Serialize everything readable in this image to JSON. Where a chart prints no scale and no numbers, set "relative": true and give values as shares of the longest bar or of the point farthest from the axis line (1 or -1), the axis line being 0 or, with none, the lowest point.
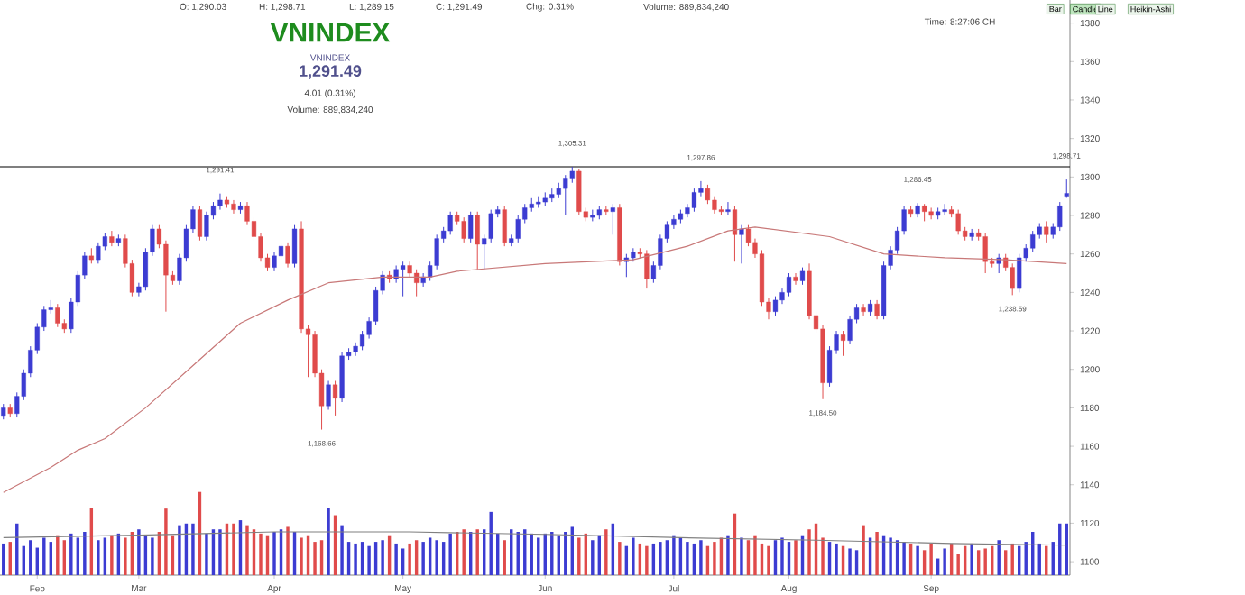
{
  "chart_data": [
    {
      "type": "candlestick",
      "title": "VNINDEX",
      "subtitle": "VNINDEX",
      "categories": [
        null,
        null,
        null,
        null,
        null,
        null,
        null,
        null,
        null,
        null,
        null,
        null,
        null,
        null,
        null,
        null,
        null,
        null,
        null,
        null,
        null,
        null,
        null,
        null,
        null,
        null,
        null,
        null,
        null,
        null,
        null,
        null,
        null,
        null,
        null,
        null,
        null,
        null,
        null,
        null,
        null,
        null,
        null,
        null,
        null,
        null,
        null,
        null,
        null,
        null,
        null,
        null,
        null,
        null,
        null,
        null,
        null,
        null,
        null,
        null,
        null,
        null,
        null,
        null,
        null,
        null,
        null,
        null,
        null,
        null,
        null,
        null,
        null,
        null,
        null,
        null,
        null,
        null,
        null,
        null,
        null,
        null,
        null,
        null,
        null,
        null,
        null,
        null,
        null,
        null,
        null,
        null,
        null,
        null,
        null,
        null,
        null,
        null,
        null,
        null,
        null,
        null,
        null,
        null,
        null,
        null,
        null,
        null,
        null,
        null,
        null,
        null,
        null,
        null,
        null,
        null,
        null,
        null,
        null,
        null,
        null,
        null,
        null,
        null,
        null,
        null,
        null,
        null,
        null,
        null,
        null,
        null,
        null,
        null,
        null,
        null,
        null,
        null,
        null,
        null,
        null,
        null,
        null,
        null,
        null,
        null,
        null,
        null,
        null,
        null,
        null,
        null,
        null,
        null,
        null,
        null,
        null,
        null
      ],
      "ohlc": [
        [
          1176,
          1182,
          1174,
          1180
        ],
        [
          1180,
          1182,
          1175,
          1177
        ],
        [
          1177,
          1188,
          1175,
          1186
        ],
        [
          1186,
          1200,
          1184,
          1198
        ],
        [
          1198,
          1212,
          1196,
          1210
        ],
        [
          1210,
          1224,
          1208,
          1222
        ],
        [
          1222,
          1233,
          1220,
          1231
        ],
        [
          1231,
          1236,
          1229,
          1232
        ],
        [
          1232,
          1234,
          1222,
          1224
        ],
        [
          1224,
          1226,
          1219,
          1221
        ],
        [
          1221,
          1237,
          1219,
          1235
        ],
        [
          1235,
          1251,
          1233,
          1249
        ],
        [
          1249,
          1261,
          1247,
          1259
        ],
        [
          1259,
          1263,
          1255,
          1257
        ],
        [
          1257,
          1266,
          1255,
          1264
        ],
        [
          1264,
          1271,
          1262,
          1269
        ],
        [
          1269,
          1272,
          1264,
          1266
        ],
        [
          1266,
          1270,
          1264,
          1268
        ],
        [
          1268,
          1270,
          1253,
          1255
        ],
        [
          1255,
          1257,
          1238,
          1240
        ],
        [
          1240,
          1245,
          1238,
          1243
        ],
        [
          1243,
          1263,
          1241,
          1261
        ],
        [
          1261,
          1275,
          1259,
          1273
        ],
        [
          1273,
          1275,
          1263,
          1265
        ],
        [
          1265,
          1267,
          1230,
          1249
        ],
        [
          1249,
          1251,
          1244,
          1246
        ],
        [
          1246,
          1260,
          1244,
          1258
        ],
        [
          1258,
          1275,
          1256,
          1273
        ],
        [
          1273,
          1285,
          1271,
          1283
        ],
        [
          1283,
          1285,
          1267,
          1269
        ],
        [
          1269,
          1282,
          1267,
          1280
        ],
        [
          1280,
          1287,
          1278,
          1285
        ],
        [
          1285,
          1291.41,
          1283,
          1288
        ],
        [
          1288,
          1290,
          1284,
          1286
        ],
        [
          1286,
          1288,
          1281,
          1283
        ],
        [
          1283,
          1287,
          1281,
          1285
        ],
        [
          1285,
          1287,
          1275,
          1277
        ],
        [
          1277,
          1279,
          1267,
          1269
        ],
        [
          1269,
          1271,
          1256,
          1258
        ],
        [
          1258,
          1260,
          1251,
          1253
        ],
        [
          1253,
          1261,
          1251,
          1259
        ],
        [
          1259,
          1266,
          1257,
          1264
        ],
        [
          1264,
          1266,
          1253,
          1255
        ],
        [
          1255,
          1275,
          1253,
          1273
        ],
        [
          1273,
          1277,
          1219,
          1221
        ],
        [
          1221,
          1223,
          1196,
          1218
        ],
        [
          1218,
          1220,
          1196,
          1198
        ],
        [
          1198,
          1200,
          1168.66,
          1181
        ],
        [
          1181,
          1194,
          1179,
          1192
        ],
        [
          1192,
          1194,
          1176,
          1185
        ],
        [
          1185,
          1209,
          1183,
          1207
        ],
        [
          1207,
          1211,
          1205,
          1209
        ],
        [
          1209,
          1214,
          1207,
          1212
        ],
        [
          1212,
          1220,
          1210,
          1218
        ],
        [
          1218,
          1227,
          1216,
          1225
        ],
        [
          1225,
          1243,
          1223,
          1241
        ],
        [
          1241,
          1251,
          1239,
          1249
        ],
        [
          1249,
          1251,
          1245,
          1247
        ],
        [
          1247,
          1254,
          1245,
          1252
        ],
        [
          1252,
          1256,
          1238,
          1254
        ],
        [
          1254,
          1256,
          1248,
          1250
        ],
        [
          1250,
          1252,
          1238,
          1245
        ],
        [
          1245,
          1250,
          1243,
          1248
        ],
        [
          1248,
          1256,
          1246,
          1254
        ],
        [
          1254,
          1270,
          1252,
          1268
        ],
        [
          1268,
          1274,
          1266,
          1272
        ],
        [
          1272,
          1282,
          1270,
          1280
        ],
        [
          1280,
          1282,
          1275,
          1277
        ],
        [
          1277,
          1279,
          1266,
          1268
        ],
        [
          1268,
          1282,
          1266,
          1280
        ],
        [
          1280,
          1282,
          1252,
          1265
        ],
        [
          1265,
          1270,
          1252,
          1268
        ],
        [
          1268,
          1283,
          1266,
          1281
        ],
        [
          1281,
          1285,
          1279,
          1283
        ],
        [
          1283,
          1285,
          1264,
          1266
        ],
        [
          1266,
          1270,
          1264,
          1268
        ],
        [
          1268,
          1280,
          1266,
          1278
        ],
        [
          1278,
          1286,
          1276,
          1284
        ],
        [
          1284,
          1289,
          1282,
          1286
        ],
        [
          1286,
          1290,
          1284,
          1287
        ],
        [
          1287,
          1292,
          1285,
          1289
        ],
        [
          1289,
          1294,
          1287,
          1291
        ],
        [
          1291,
          1297,
          1289,
          1294
        ],
        [
          1294,
          1301,
          1280,
          1299
        ],
        [
          1299,
          1305.31,
          1297,
          1303
        ],
        [
          1303,
          1304,
          1280,
          1282
        ],
        [
          1282,
          1284,
          1277,
          1279
        ],
        [
          1279,
          1283,
          1277,
          1280
        ],
        [
          1280,
          1285,
          1278,
          1283
        ],
        [
          1283,
          1285,
          1280,
          1282
        ],
        [
          1282,
          1286,
          1270,
          1284
        ],
        [
          1284,
          1286,
          1254,
          1256
        ],
        [
          1256,
          1260,
          1248,
          1258
        ],
        [
          1258,
          1263,
          1256,
          1261
        ],
        [
          1261,
          1263,
          1258,
          1260
        ],
        [
          1260,
          1262,
          1242,
          1247
        ],
        [
          1247,
          1256,
          1245,
          1254
        ],
        [
          1254,
          1270,
          1252,
          1268
        ],
        [
          1268,
          1277,
          1266,
          1275
        ],
        [
          1275,
          1280,
          1273,
          1278
        ],
        [
          1278,
          1283,
          1276,
          1281
        ],
        [
          1281,
          1286,
          1279,
          1284
        ],
        [
          1284,
          1294,
          1282,
          1292
        ],
        [
          1292,
          1297.86,
          1290,
          1294
        ],
        [
          1294,
          1296,
          1286,
          1288
        ],
        [
          1288,
          1290,
          1281,
          1283
        ],
        [
          1283,
          1285,
          1280,
          1282
        ],
        [
          1282,
          1287,
          1280,
          1283
        ],
        [
          1283,
          1285,
          1256,
          1270
        ],
        [
          1270,
          1275,
          1255,
          1273
        ],
        [
          1273,
          1275,
          1264,
          1266
        ],
        [
          1266,
          1268,
          1258,
          1260
        ],
        [
          1260,
          1262,
          1233,
          1235
        ],
        [
          1235,
          1237,
          1226,
          1230
        ],
        [
          1230,
          1238,
          1228,
          1236
        ],
        [
          1236,
          1242,
          1234,
          1240
        ],
        [
          1240,
          1250,
          1238,
          1248
        ],
        [
          1248,
          1250,
          1244,
          1246
        ],
        [
          1246,
          1253,
          1244,
          1251
        ],
        [
          1251,
          1255,
          1226,
          1228
        ],
        [
          1228,
          1230,
          1219,
          1221
        ],
        [
          1221,
          1223,
          1184.5,
          1193
        ],
        [
          1193,
          1212,
          1191,
          1210
        ],
        [
          1210,
          1220,
          1208,
          1218
        ],
        [
          1218,
          1220,
          1207,
          1215
        ],
        [
          1215,
          1228,
          1213,
          1226
        ],
        [
          1226,
          1234,
          1224,
          1232
        ],
        [
          1232,
          1234,
          1228,
          1230
        ],
        [
          1230,
          1236,
          1228,
          1234
        ],
        [
          1234,
          1236,
          1226,
          1228
        ],
        [
          1228,
          1256,
          1226,
          1254
        ],
        [
          1254,
          1264,
          1252,
          1262
        ],
        [
          1262,
          1274,
          1260,
          1272
        ],
        [
          1272,
          1285,
          1270,
          1283
        ],
        [
          1283,
          1285,
          1279,
          1281
        ],
        [
          1281,
          1286.45,
          1279,
          1285
        ],
        [
          1285,
          1286,
          1277,
          1282
        ],
        [
          1282,
          1284,
          1278,
          1280
        ],
        [
          1280,
          1284,
          1278,
          1282
        ],
        [
          1282,
          1286,
          1280,
          1283
        ],
        [
          1283,
          1285,
          1279,
          1281
        ],
        [
          1281,
          1283,
          1270,
          1272
        ],
        [
          1272,
          1274,
          1267,
          1269
        ],
        [
          1269,
          1273,
          1267,
          1271
        ],
        [
          1271,
          1273,
          1267,
          1269
        ],
        [
          1269,
          1271,
          1250,
          1256
        ],
        [
          1256,
          1258,
          1253,
          1255
        ],
        [
          1255,
          1260,
          1250,
          1258
        ],
        [
          1258,
          1260,
          1251,
          1253
        ],
        [
          1253,
          1255,
          1238.59,
          1242
        ],
        [
          1242,
          1260,
          1240,
          1258
        ],
        [
          1258,
          1265,
          1256,
          1263
        ],
        [
          1263,
          1272,
          1261,
          1270
        ],
        [
          1270,
          1276,
          1268,
          1274
        ],
        [
          1274,
          1277,
          1266,
          1270
        ],
        [
          1270,
          1276,
          1268,
          1274
        ],
        [
          1274,
          1287,
          1272,
          1285
        ],
        [
          1290.03,
          1298.71,
          1289.15,
          1291.49
        ]
      ],
      "colors": [
        "#3c3cd2",
        "#e04b4b",
        "#3c3cd2",
        "#3c3cd2",
        "#3c3cd2",
        "#3c3cd2",
        "#3c3cd2",
        "#3c3cd2",
        "#e04b4b",
        "#e04b4b",
        "#3c3cd2",
        "#3c3cd2",
        "#3c3cd2",
        "#e04b4b",
        "#3c3cd2",
        "#3c3cd2",
        "#e04b4b",
        "#3c3cd2",
        "#e04b4b",
        "#e04b4b",
        "#3c3cd2",
        "#3c3cd2",
        "#3c3cd2",
        "#e04b4b",
        "#e04b4b",
        "#e04b4b",
        "#3c3cd2",
        "#3c3cd2",
        "#3c3cd2",
        "#e04b4b",
        "#3c3cd2",
        "#3c3cd2",
        "#3c3cd2",
        "#e04b4b",
        "#e04b4b",
        "#3c3cd2",
        "#e04b4b",
        "#e04b4b",
        "#e04b4b",
        "#e04b4b",
        "#3c3cd2",
        "#3c3cd2",
        "#e04b4b",
        "#3c3cd2",
        "#e04b4b",
        "#e04b4b",
        "#e04b4b",
        "#e04b4b",
        "#3c3cd2",
        "#e04b4b",
        "#3c3cd2",
        "#3c3cd2",
        "#3c3cd2",
        "#3c3cd2",
        "#3c3cd2",
        "#3c3cd2",
        "#3c3cd2",
        "#e04b4b",
        "#3c3cd2",
        "#3c3cd2",
        "#e04b4b",
        "#e04b4b",
        "#3c3cd2",
        "#3c3cd2",
        "#3c3cd2",
        "#3c3cd2",
        "#3c3cd2",
        "#e04b4b",
        "#e04b4b",
        "#3c3cd2",
        "#e04b4b",
        "#3c3cd2",
        "#3c3cd2",
        "#3c3cd2",
        "#e04b4b",
        "#3c3cd2",
        "#3c3cd2",
        "#3c3cd2",
        "#3c3cd2",
        "#3c3cd2",
        "#3c3cd2",
        "#3c3cd2",
        "#3c3cd2",
        "#3c3cd2",
        "#3c3cd2",
        "#e04b4b",
        "#e04b4b",
        "#3c3cd2",
        "#3c3cd2",
        "#e04b4b",
        "#3c3cd2",
        "#e04b4b",
        "#3c3cd2",
        "#3c3cd2",
        "#e04b4b",
        "#e04b4b",
        "#3c3cd2",
        "#3c3cd2",
        "#3c3cd2",
        "#3c3cd2",
        "#3c3cd2",
        "#3c3cd2",
        "#3c3cd2",
        "#3c3cd2",
        "#e04b4b",
        "#e04b4b",
        "#e04b4b",
        "#3c3cd2",
        "#e04b4b",
        "#3c3cd2",
        "#e04b4b",
        "#e04b4b",
        "#e04b4b",
        "#e04b4b",
        "#3c3cd2",
        "#3c3cd2",
        "#3c3cd2",
        "#e04b4b",
        "#3c3cd2",
        "#e04b4b",
        "#e04b4b",
        "#e04b4b",
        "#3c3cd2",
        "#3c3cd2",
        "#e04b4b",
        "#3c3cd2",
        "#3c3cd2",
        "#e04b4b",
        "#3c3cd2",
        "#e04b4b",
        "#3c3cd2",
        "#3c3cd2",
        "#3c3cd2",
        "#3c3cd2",
        "#e04b4b",
        "#3c3cd2",
        "#e04b4b",
        "#e04b4b",
        "#3c3cd2",
        "#3c3cd2",
        "#e04b4b",
        "#e04b4b",
        "#e04b4b",
        "#3c3cd2",
        "#e04b4b",
        "#e04b4b",
        "#e04b4b",
        "#3c3cd2",
        "#e04b4b",
        "#e04b4b",
        "#3c3cd2",
        "#3c3cd2",
        "#3c3cd2",
        "#3c3cd2",
        "#e04b4b",
        "#3c3cd2",
        "#3c3cd2",
        "#3c3cd2"
      ],
      "series": [
        {
          "type": "line",
          "color": "#c87878",
          "values": [
            1136,
            null,
            null,
            null,
            null,
            null,
            null,
            1149,
            null,
            null,
            null,
            1158,
            null,
            null,
            null,
            1164,
            null,
            null,
            null,
            null,
            null,
            1180,
            null,
            null,
            null,
            null,
            null,
            null,
            1202,
            null,
            null,
            null,
            null,
            null,
            null,
            1224,
            null,
            null,
            null,
            null,
            null,
            null,
            1236,
            null,
            null,
            null,
            null,
            null,
            1245,
            null,
            null,
            null,
            null,
            null,
            null,
            null,
            1248,
            null,
            null,
            null,
            null,
            null,
            null,
            1248,
            null,
            null,
            null,
            1251,
            null,
            null,
            null,
            null,
            null,
            null,
            null,
            null,
            null,
            null,
            null,
            null,
            1255,
            null,
            null,
            null,
            null,
            null,
            null,
            null,
            null,
            null,
            null,
            null,
            null,
            1257,
            null,
            null,
            null,
            null,
            null,
            null,
            null,
            1264,
            null,
            null,
            null,
            null,
            null,
            1272,
            null,
            null,
            null,
            1274,
            null,
            null,
            null,
            null,
            null,
            null,
            null,
            null,
            null,
            null,
            1269,
            null,
            null,
            null,
            null,
            null,
            null,
            null,
            1260,
            null,
            null,
            null,
            null,
            null,
            null,
            null,
            null,
            1258,
            null,
            null,
            null,
            null,
            null,
            null,
            null,
            null,
            1257,
            null,
            null,
            null,
            null,
            null,
            null,
            null,
            null,
            1255
          ]
        }
      ],
      "ylim": [
        1093,
        1392
      ],
      "yticks": [
        1100,
        1120,
        1140,
        1160,
        1180,
        1200,
        1220,
        1240,
        1260,
        1280,
        1300,
        1320,
        1340,
        1360,
        1380
      ],
      "tick_labels": "y",
      "ref_lines": [
        {
          "axis": "y",
          "value": 1305.31,
          "color": "#000000"
        }
      ],
      "annotations": [
        "O: 1,290.03",
        "H: 1,298.71",
        "L: 1,289.15",
        "C: 1,291.49",
        "Chg: 0.31%",
        "Volume: 889,834,240",
        "1,291.49",
        "4.01 (0.31%)",
        "Volume: 889,834,240",
        "Time: 8:27:06 CH",
        "Bar",
        "Candle",
        "Line",
        "Heikin-Ashi",
        {
          "text": "1,291.41",
          "y": 1291.41
        },
        {
          "text": "1,305.31",
          "y": 1305.31
        },
        {
          "text": "1,297.86",
          "y": 1297.86
        },
        {
          "text": "1,286.45",
          "y": 1286.45
        },
        {
          "text": "1,298.71",
          "y": 1298.71
        },
        {
          "text": "1,168.66",
          "y": 1168.66
        },
        {
          "text": "1,184.50",
          "y": 1184.5
        },
        {
          "text": "1,238.59",
          "y": 1238.59
        }
      ]
    },
    {
      "type": "bar",
      "relative": true,
      "tick_labels": "x",
      "categories": [
        null,
        null,
        null,
        null,
        null,
        "Feb",
        null,
        null,
        null,
        null,
        null,
        null,
        null,
        null,
        null,
        null,
        null,
        null,
        null,
        null,
        "Mar",
        null,
        null,
        null,
        null,
        null,
        null,
        null,
        null,
        null,
        null,
        null,
        null,
        null,
        null,
        null,
        null,
        null,
        null,
        null,
        "Apr",
        null,
        null,
        null,
        null,
        null,
        null,
        null,
        null,
        null,
        null,
        null,
        null,
        null,
        null,
        null,
        null,
        null,
        null,
        "May",
        null,
        null,
        null,
        null,
        null,
        null,
        null,
        null,
        null,
        null,
        null,
        null,
        null,
        null,
        null,
        null,
        null,
        null,
        null,
        null,
        "Jun",
        null,
        null,
        null,
        null,
        null,
        null,
        null,
        null,
        null,
        null,
        null,
        null,
        null,
        null,
        null,
        null,
        null,
        null,
        "Jul",
        null,
        null,
        null,
        null,
        null,
        null,
        null,
        null,
        null,
        null,
        null,
        null,
        null,
        null,
        null,
        null,
        "Aug",
        null,
        null,
        null,
        null,
        null,
        null,
        null,
        null,
        null,
        null,
        null,
        null,
        null,
        null,
        null,
        null,
        null,
        null,
        null,
        null,
        "Sep",
        null,
        null,
        null,
        null,
        null,
        null,
        null,
        null,
        null,
        null,
        null,
        null,
        null,
        null,
        null,
        null,
        null,
        null,
        null,
        null
      ],
      "series": [
        {
          "type": "bar",
          "values": [
            0.38,
            0.4,
            0.62,
            0.35,
            0.42,
            0.33,
            0.45,
            0.4,
            0.48,
            0.42,
            0.5,
            0.45,
            0.52,
            0.81,
            0.42,
            0.45,
            0.48,
            0.5,
            0.45,
            0.52,
            0.55,
            0.48,
            0.45,
            0.52,
            0.8,
            0.48,
            0.6,
            0.62,
            0.62,
            1.0,
            0.5,
            0.55,
            0.55,
            0.62,
            0.62,
            0.66,
            0.6,
            0.55,
            0.5,
            0.48,
            0.52,
            0.55,
            0.58,
            0.52,
            0.45,
            0.48,
            0.4,
            0.42,
            0.81,
            0.72,
            0.6,
            0.4,
            0.38,
            0.4,
            0.35,
            0.4,
            0.42,
            0.48,
            0.38,
            0.32,
            0.38,
            0.42,
            0.4,
            0.45,
            0.42,
            0.4,
            0.5,
            0.52,
            0.55,
            0.52,
            0.55,
            0.55,
            0.76,
            0.5,
            0.42,
            0.55,
            0.52,
            0.55,
            0.5,
            0.45,
            0.5,
            0.52,
            0.48,
            0.52,
            0.58,
            0.45,
            0.5,
            0.42,
            0.48,
            0.55,
            0.62,
            0.4,
            0.35,
            0.45,
            0.38,
            0.35,
            0.38,
            0.4,
            0.42,
            0.48,
            0.45,
            0.4,
            0.38,
            0.42,
            0.35,
            0.4,
            0.45,
            0.48,
            0.74,
            0.45,
            0.42,
            0.48,
            0.38,
            0.35,
            0.42,
            0.45,
            0.4,
            0.42,
            0.48,
            0.55,
            0.62,
            0.45,
            0.4,
            0.38,
            0.35,
            0.32,
            0.3,
            0.6,
            0.45,
            0.52,
            0.48,
            0.45,
            0.42,
            0.4,
            0.38,
            0.35,
            0.3,
            0.38,
            0.2,
            0.32,
            0.38,
            0.25,
            0.35,
            0.38,
            0.3,
            0.32,
            0.35,
            0.42,
            0.3,
            0.38,
            0.35,
            0.4,
            0.52,
            0.38,
            0.35,
            0.4,
            0.62,
            0.62
          ],
          "colors": [
            "#3c3cd2",
            "#e04b4b",
            "#3c3cd2",
            "#3c3cd2",
            "#3c3cd2",
            "#3c3cd2",
            "#3c3cd2",
            "#3c3cd2",
            "#e04b4b",
            "#e04b4b",
            "#3c3cd2",
            "#3c3cd2",
            "#3c3cd2",
            "#e04b4b",
            "#3c3cd2",
            "#3c3cd2",
            "#e04b4b",
            "#3c3cd2",
            "#e04b4b",
            "#e04b4b",
            "#3c3cd2",
            "#3c3cd2",
            "#3c3cd2",
            "#e04b4b",
            "#e04b4b",
            "#e04b4b",
            "#3c3cd2",
            "#3c3cd2",
            "#3c3cd2",
            "#e04b4b",
            "#3c3cd2",
            "#3c3cd2",
            "#3c3cd2",
            "#e04b4b",
            "#e04b4b",
            "#3c3cd2",
            "#e04b4b",
            "#e04b4b",
            "#e04b4b",
            "#e04b4b",
            "#3c3cd2",
            "#3c3cd2",
            "#e04b4b",
            "#3c3cd2",
            "#e04b4b",
            "#e04b4b",
            "#e04b4b",
            "#e04b4b",
            "#3c3cd2",
            "#e04b4b",
            "#3c3cd2",
            "#3c3cd2",
            "#3c3cd2",
            "#3c3cd2",
            "#3c3cd2",
            "#3c3cd2",
            "#3c3cd2",
            "#e04b4b",
            "#3c3cd2",
            "#3c3cd2",
            "#e04b4b",
            "#e04b4b",
            "#3c3cd2",
            "#3c3cd2",
            "#3c3cd2",
            "#3c3cd2",
            "#3c3cd2",
            "#e04b4b",
            "#e04b4b",
            "#3c3cd2",
            "#e04b4b",
            "#3c3cd2",
            "#3c3cd2",
            "#3c3cd2",
            "#e04b4b",
            "#3c3cd2",
            "#3c3cd2",
            "#3c3cd2",
            "#3c3cd2",
            "#3c3cd2",
            "#3c3cd2",
            "#3c3cd2",
            "#3c3cd2",
            "#3c3cd2",
            "#3c3cd2",
            "#e04b4b",
            "#e04b4b",
            "#3c3cd2",
            "#3c3cd2",
            "#e04b4b",
            "#3c3cd2",
            "#e04b4b",
            "#3c3cd2",
            "#3c3cd2",
            "#e04b4b",
            "#e04b4b",
            "#3c3cd2",
            "#3c3cd2",
            "#3c3cd2",
            "#3c3cd2",
            "#3c3cd2",
            "#3c3cd2",
            "#3c3cd2",
            "#3c3cd2",
            "#e04b4b",
            "#e04b4b",
            "#e04b4b",
            "#3c3cd2",
            "#e04b4b",
            "#3c3cd2",
            "#e04b4b",
            "#e04b4b",
            "#e04b4b",
            "#e04b4b",
            "#3c3cd2",
            "#3c3cd2",
            "#3c3cd2",
            "#e04b4b",
            "#3c3cd2",
            "#e04b4b",
            "#e04b4b",
            "#e04b4b",
            "#3c3cd2",
            "#3c3cd2",
            "#e04b4b",
            "#3c3cd2",
            "#3c3cd2",
            "#e04b4b",
            "#3c3cd2",
            "#e04b4b",
            "#3c3cd2",
            "#3c3cd2",
            "#3c3cd2",
            "#3c3cd2",
            "#e04b4b",
            "#3c3cd2",
            "#e04b4b",
            "#e04b4b",
            "#3c3cd2",
            "#3c3cd2",
            "#e04b4b",
            "#e04b4b",
            "#e04b4b",
            "#3c3cd2",
            "#e04b4b",
            "#e04b4b",
            "#e04b4b",
            "#3c3cd2",
            "#e04b4b",
            "#e04b4b",
            "#3c3cd2",
            "#3c3cd2",
            "#3c3cd2",
            "#3c3cd2",
            "#e04b4b",
            "#3c3cd2",
            "#3c3cd2",
            "#3c3cd2"
          ]
        },
        {
          "type": "line",
          "color": "#808080",
          "values": [
            0.45,
            null,
            null,
            null,
            null,
            null,
            null,
            null,
            null,
            null,
            null,
            null,
            null,
            null,
            null,
            null,
            null,
            null,
            null,
            null,
            0.48,
            null,
            null,
            null,
            null,
            null,
            null,
            null,
            null,
            null,
            null,
            null,
            null,
            null,
            null,
            null,
            null,
            null,
            null,
            null,
            0.52,
            null,
            null,
            null,
            null,
            null,
            null,
            null,
            null,
            null,
            null,
            null,
            null,
            null,
            null,
            null,
            null,
            null,
            null,
            null,
            0.52,
            null,
            null,
            null,
            null,
            null,
            null,
            null,
            null,
            null,
            null,
            null,
            null,
            null,
            null,
            null,
            null,
            null,
            null,
            null,
            0.49,
            null,
            null,
            null,
            null,
            null,
            null,
            null,
            null,
            null,
            null,
            null,
            null,
            null,
            null,
            null,
            null,
            null,
            null,
            null,
            0.45,
            null,
            null,
            null,
            null,
            null,
            null,
            null,
            null,
            null,
            null,
            null,
            null,
            null,
            null,
            null,
            null,
            null,
            null,
            null,
            0.42,
            null,
            null,
            null,
            null,
            null,
            null,
            null,
            null,
            null,
            null,
            null,
            null,
            null,
            null,
            null,
            null,
            null,
            null,
            null,
            0.38,
            null,
            null,
            null,
            null,
            null,
            null,
            null,
            null,
            null,
            null,
            null,
            null,
            null,
            null,
            null,
            null,
            0.36
          ]
        }
      ]
    }
  ]
}
